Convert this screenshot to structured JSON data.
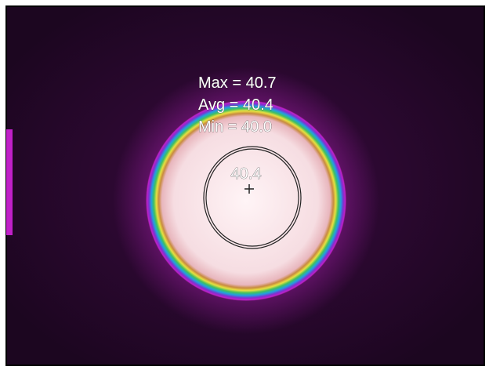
{
  "overlay": {
    "stats": [
      "Max = 40.7",
      "Avg = 40.4",
      "Min = 40.0"
    ],
    "spot_label": "40.4"
  }
}
